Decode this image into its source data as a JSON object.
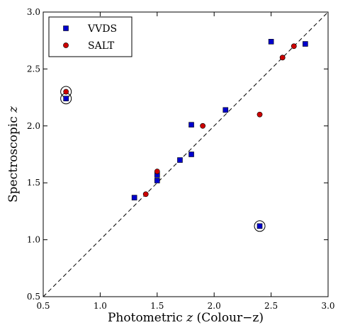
{
  "chart_data": {
    "type": "scatter",
    "xlabel": {
      "prefix": "Photometric ",
      "var": "z",
      "suffix": " (Colour−z)"
    },
    "ylabel": {
      "prefix": "Spectroscopic ",
      "var": "z"
    },
    "xlim": [
      0.5,
      3.0
    ],
    "ylim": [
      0.5,
      3.0
    ],
    "xticks": [
      0.5,
      1.0,
      1.5,
      2.0,
      2.5,
      3.0
    ],
    "yticks": [
      0.5,
      1.0,
      1.5,
      2.0,
      2.5,
      3.0
    ],
    "xtick_labels": [
      "0.5",
      "1.0",
      "1.5",
      "2.0",
      "2.5",
      "3.0"
    ],
    "ytick_labels": [
      "0.5",
      "1.0",
      "1.5",
      "2.0",
      "2.5",
      "3.0"
    ],
    "grid": false,
    "legend": {
      "position": "top-left"
    },
    "reference_line": {
      "type": "y=x",
      "style": "dashed",
      "color": "#000000"
    },
    "series": [
      {
        "name": "VVDS",
        "marker": "square",
        "color": "#0000cc",
        "points": [
          {
            "x": 0.7,
            "y": 2.24
          },
          {
            "x": 1.3,
            "y": 1.37
          },
          {
            "x": 1.5,
            "y": 1.52
          },
          {
            "x": 1.5,
            "y": 1.57
          },
          {
            "x": 1.7,
            "y": 1.7
          },
          {
            "x": 1.8,
            "y": 1.75
          },
          {
            "x": 1.8,
            "y": 2.01
          },
          {
            "x": 2.1,
            "y": 2.14
          },
          {
            "x": 2.4,
            "y": 1.12
          },
          {
            "x": 2.5,
            "y": 2.74
          },
          {
            "x": 2.8,
            "y": 2.72
          }
        ]
      },
      {
        "name": "SALT",
        "marker": "circle",
        "color": "#cc0000",
        "points": [
          {
            "x": 0.7,
            "y": 2.3
          },
          {
            "x": 1.4,
            "y": 1.4
          },
          {
            "x": 1.5,
            "y": 1.6
          },
          {
            "x": 1.9,
            "y": 2.0
          },
          {
            "x": 2.4,
            "y": 2.1
          },
          {
            "x": 2.6,
            "y": 2.6
          },
          {
            "x": 2.7,
            "y": 2.7
          }
        ]
      }
    ],
    "highlighted": [
      {
        "x": 0.7,
        "y": 2.24
      },
      {
        "x": 0.7,
        "y": 2.3
      },
      {
        "x": 2.4,
        "y": 1.12
      }
    ]
  }
}
